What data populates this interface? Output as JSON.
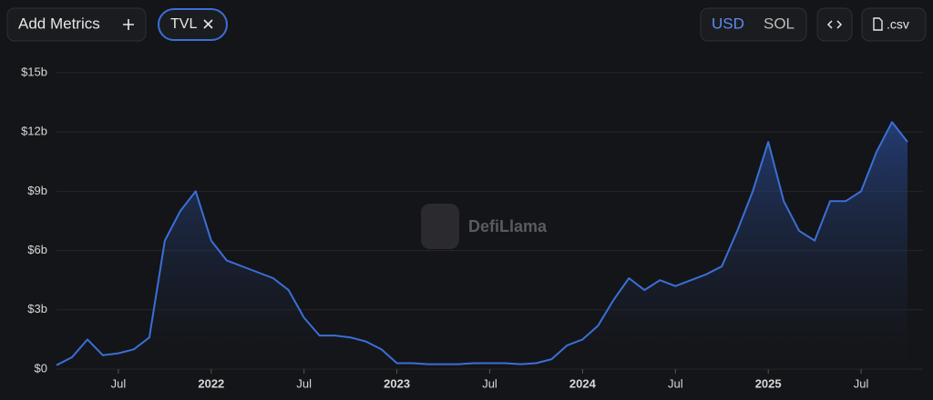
{
  "ui": {
    "add_metrics": "Add Metrics",
    "metric_chip": "TVL",
    "currencies": [
      "USD",
      "SOL"
    ],
    "csv": ".csv",
    "watermark": "DefiLlama"
  },
  "chart_data": {
    "type": "area",
    "x": [
      "2021-03",
      "2021-04",
      "2021-05",
      "2021-06",
      "2021-07",
      "2021-08",
      "2021-09",
      "2021-10",
      "2021-11",
      "2021-12",
      "2022-01",
      "2022-02",
      "2022-03",
      "2022-04",
      "2022-05",
      "2022-06",
      "2022-07",
      "2022-08",
      "2022-09",
      "2022-10",
      "2022-11",
      "2022-12",
      "2023-01",
      "2023-02",
      "2023-03",
      "2023-04",
      "2023-05",
      "2023-06",
      "2023-07",
      "2023-08",
      "2023-09",
      "2023-10",
      "2023-11",
      "2023-12",
      "2024-01",
      "2024-02",
      "2024-03",
      "2024-04",
      "2024-05",
      "2024-06",
      "2024-07",
      "2024-08",
      "2024-09",
      "2024-10",
      "2024-11",
      "2024-12",
      "2025-01",
      "2025-02",
      "2025-03",
      "2025-04",
      "2025-05",
      "2025-06",
      "2025-07",
      "2025-08",
      "2025-09",
      "2025-10"
    ],
    "series": [
      {
        "name": "TVL",
        "color": "#3b6fd6",
        "values": [
          0.2,
          0.6,
          1.5,
          0.7,
          0.8,
          1.0,
          1.6,
          6.5,
          8.0,
          9.0,
          6.5,
          5.5,
          5.2,
          4.9,
          4.6,
          4.0,
          2.6,
          1.7,
          1.7,
          1.6,
          1.4,
          1.0,
          0.3,
          0.3,
          0.25,
          0.25,
          0.25,
          0.3,
          0.3,
          0.3,
          0.25,
          0.3,
          0.5,
          1.2,
          1.5,
          2.2,
          3.5,
          4.6,
          4.0,
          4.5,
          4.2,
          4.5,
          4.8,
          5.2,
          7.0,
          9.0,
          11.5,
          8.5,
          7.0,
          6.5,
          8.5,
          8.5,
          9.0,
          11.0,
          12.5,
          11.5
        ]
      }
    ],
    "xlim": [
      "2021-03",
      "2025-11"
    ],
    "xticks": [
      {
        "value": "2021-07",
        "label": "Jul"
      },
      {
        "value": "2022-01",
        "label": "2022"
      },
      {
        "value": "2022-07",
        "label": "Jul"
      },
      {
        "value": "2023-01",
        "label": "2023"
      },
      {
        "value": "2023-07",
        "label": "Jul"
      },
      {
        "value": "2024-01",
        "label": "2024"
      },
      {
        "value": "2024-07",
        "label": "Jul"
      },
      {
        "value": "2025-01",
        "label": "2025"
      },
      {
        "value": "2025-07",
        "label": "Jul"
      }
    ],
    "ylim": [
      0,
      15
    ],
    "yticks": [
      {
        "value": 0,
        "label": "$0"
      },
      {
        "value": 3,
        "label": "$3b"
      },
      {
        "value": 6,
        "label": "$6b"
      },
      {
        "value": 9,
        "label": "$9b"
      },
      {
        "value": 12,
        "label": "$12b"
      },
      {
        "value": 15,
        "label": "$15b"
      }
    ]
  }
}
